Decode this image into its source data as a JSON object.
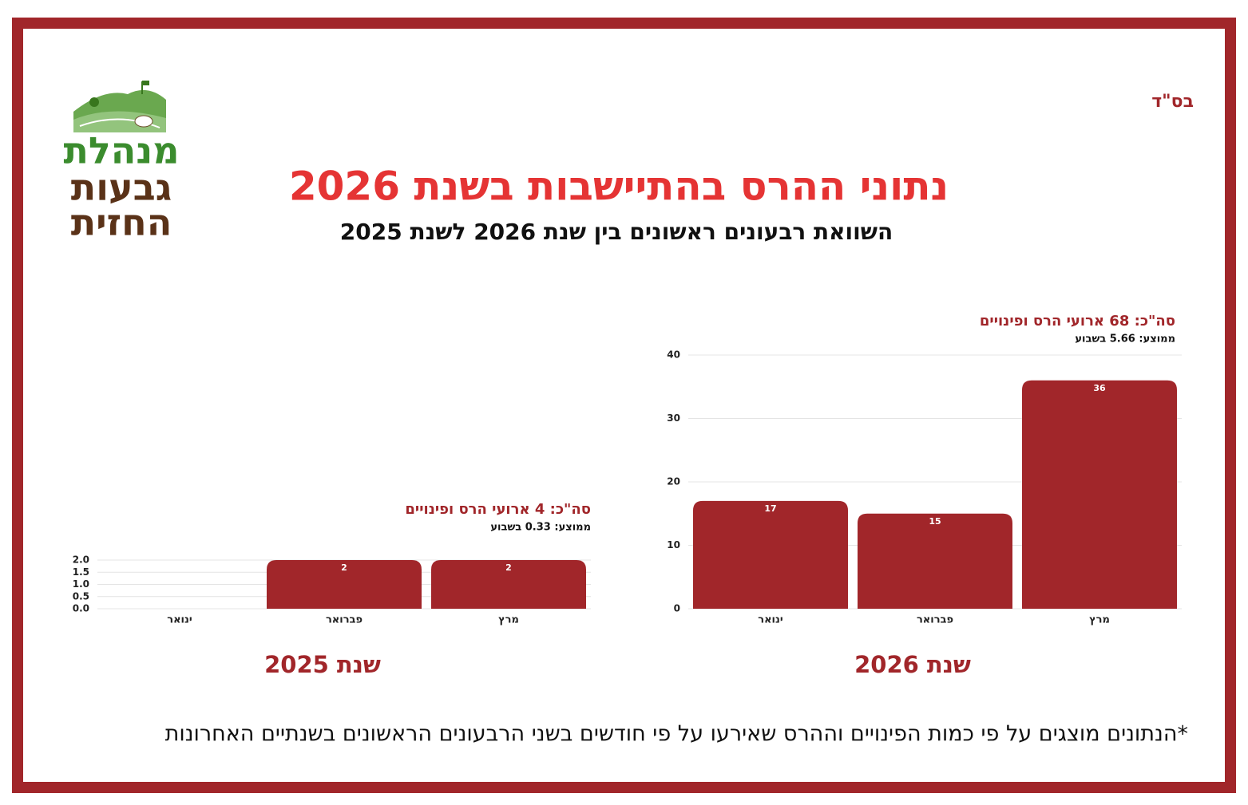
{
  "header": {
    "blessing": "בס\"ד",
    "title": "נתוני ההרס בהתיישבות בשנת 2026",
    "subtitle": "השוואת רבעונים ראשונים בין שנת 2026 לשנת 2025"
  },
  "logo": {
    "lines": [
      "מנהלת",
      "גבעות",
      "החזית"
    ]
  },
  "chart_data": [
    {
      "type": "bar",
      "title": "שנת 2026",
      "annotations": [
        "סה\"כ: 68 ארועי הרס ופינויים",
        "ממוצע: 5.66 בשבוע"
      ],
      "categories": [
        "ינואר",
        "פברואר",
        "מרץ"
      ],
      "values": [
        17,
        15,
        36
      ],
      "color": "#a1262a",
      "ylim": [
        0,
        40
      ],
      "yticks": [
        0,
        10,
        20,
        30,
        40
      ],
      "grid": true
    },
    {
      "type": "bar",
      "title": "שנת 2025",
      "annotations": [
        "סה\"כ: 4 ארועי הרס ופינויים",
        "ממוצע: 0.33 בשבוע"
      ],
      "categories": [
        "ינואר",
        "פברואר",
        "מרץ"
      ],
      "values": [
        0,
        2,
        2
      ],
      "color": "#a1262a",
      "ylim": [
        0,
        2
      ],
      "yticks": [
        {
          "value": 0,
          "label": "0.0"
        },
        0.5,
        {
          "value": 1,
          "label": "1.0"
        },
        1.5,
        {
          "value": 2,
          "label": "2.0"
        }
      ],
      "grid": true
    }
  ],
  "footnote": "*הנתונים מוצגים על פי כמות הפינויים וההרס שאירעו על פי חודשים בשני הרבעונים הראשונים בשנתיים האחרונות"
}
